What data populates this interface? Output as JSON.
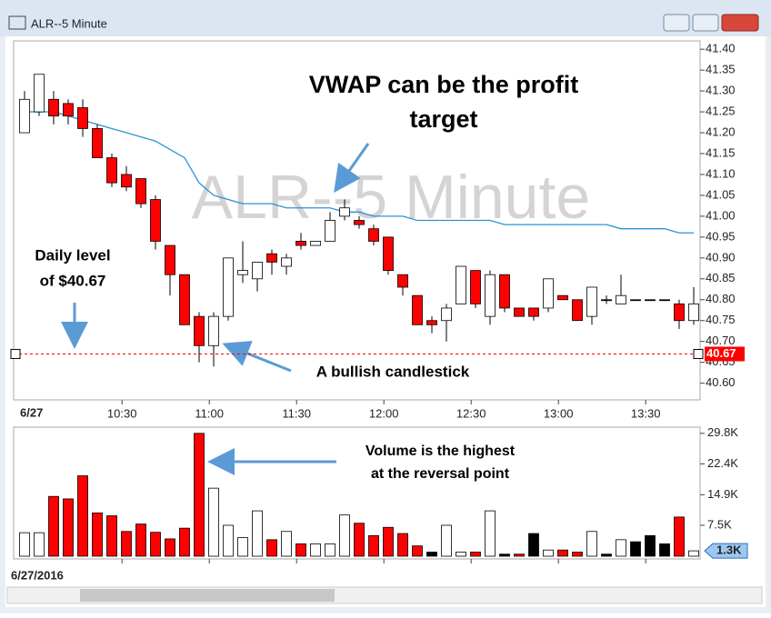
{
  "window_title": "ALR--5 Minute",
  "date_tab": "6/27",
  "footer_date": "6/27/2016",
  "chart_data": [
    {
      "type": "candlestick",
      "watermark": "ALR--5 Minute",
      "open": [
        41.2,
        41.25,
        41.28,
        41.27,
        41.26,
        41.21,
        41.14,
        41.1,
        41.09,
        41.04,
        40.93,
        40.86,
        40.76,
        40.69,
        40.76,
        40.86,
        40.85,
        40.91,
        40.88,
        40.94,
        40.93,
        40.94,
        41.0,
        40.99,
        40.97,
        40.95,
        40.86,
        40.81,
        40.75,
        40.75,
        40.79,
        40.87,
        40.76,
        40.86,
        40.78,
        40.78,
        40.78,
        40.81,
        40.8,
        40.76,
        40.8,
        40.79,
        40.8,
        40.8,
        40.8,
        40.79,
        40.75
      ],
      "high": [
        41.3,
        41.34,
        41.3,
        41.28,
        41.28,
        41.22,
        41.15,
        41.12,
        41.09,
        41.05,
        40.93,
        40.86,
        40.77,
        40.77,
        40.9,
        40.94,
        40.89,
        40.92,
        40.91,
        40.96,
        40.94,
        41.01,
        41.04,
        41.0,
        40.98,
        40.95,
        40.86,
        40.81,
        40.76,
        40.79,
        40.88,
        40.87,
        40.87,
        40.86,
        40.78,
        40.78,
        40.85,
        40.81,
        40.8,
        40.83,
        40.81,
        40.86,
        40.8,
        40.8,
        40.8,
        40.8,
        40.83
      ],
      "low": [
        41.2,
        41.24,
        41.22,
        41.22,
        41.19,
        41.14,
        41.07,
        41.06,
        41.02,
        40.92,
        40.81,
        40.74,
        40.65,
        40.64,
        40.75,
        40.84,
        40.82,
        40.86,
        40.86,
        40.92,
        40.93,
        40.94,
        40.99,
        40.97,
        40.93,
        40.86,
        40.81,
        40.74,
        40.72,
        40.7,
        40.79,
        40.78,
        40.74,
        40.77,
        40.76,
        40.75,
        40.77,
        40.8,
        40.75,
        40.74,
        40.79,
        40.79,
        40.8,
        40.8,
        40.8,
        40.73,
        40.74
      ],
      "close": [
        41.28,
        41.34,
        41.24,
        41.24,
        41.21,
        41.14,
        41.08,
        41.07,
        41.03,
        40.94,
        40.86,
        40.74,
        40.69,
        40.76,
        40.9,
        40.87,
        40.89,
        40.89,
        40.9,
        40.93,
        40.94,
        40.99,
        41.02,
        40.98,
        40.94,
        40.87,
        40.83,
        40.74,
        40.74,
        40.78,
        40.88,
        40.79,
        40.86,
        40.78,
        40.76,
        40.76,
        40.85,
        40.8,
        40.75,
        40.83,
        40.8,
        40.81,
        40.8,
        40.8,
        40.8,
        40.75,
        40.79
      ],
      "up_color": "#ffffff",
      "down_color": "#ff0000",
      "flat_color": "#000000",
      "vwap": {
        "color": "#2a93d5",
        "values": [
          41.25,
          41.25,
          41.25,
          41.24,
          41.23,
          41.22,
          41.21,
          41.2,
          41.19,
          41.18,
          41.16,
          41.14,
          41.08,
          41.05,
          41.04,
          41.03,
          41.03,
          41.03,
          41.02,
          41.02,
          41.02,
          41.02,
          41.01,
          41.01,
          41.0,
          41.0,
          41.0,
          40.99,
          40.99,
          40.99,
          40.99,
          40.99,
          40.99,
          40.98,
          40.98,
          40.98,
          40.98,
          40.98,
          40.98,
          40.98,
          40.98,
          40.97,
          40.97,
          40.97,
          40.97,
          40.96,
          40.96
        ]
      },
      "level": {
        "value": 40.67,
        "color": "#ff0000"
      },
      "ylim": [
        40.56,
        41.42
      ],
      "yticks": [
        {
          "value": 41.4,
          "label": "41.40"
        },
        {
          "value": 41.35,
          "label": "41.35"
        },
        {
          "value": 41.3,
          "label": "41.30"
        },
        {
          "value": 41.25,
          "label": "41.25"
        },
        {
          "value": 41.2,
          "label": "41.20"
        },
        {
          "value": 41.15,
          "label": "41.15"
        },
        {
          "value": 41.1,
          "label": "41.10"
        },
        {
          "value": 41.05,
          "label": "41.05"
        },
        {
          "value": 41.0,
          "label": "41.00"
        },
        {
          "value": 40.95,
          "label": "40.95"
        },
        {
          "value": 40.9,
          "label": "40.90"
        },
        {
          "value": 40.85,
          "label": "40.85"
        },
        {
          "value": 40.8,
          "label": "40.80"
        },
        {
          "value": 40.75,
          "label": "40.75"
        },
        {
          "value": 40.7,
          "label": "40.70"
        },
        {
          "value": 40.65,
          "label": "40.65"
        },
        {
          "value": 40.6,
          "label": "40.60"
        }
      ],
      "xticks": [
        {
          "value": 6.7,
          "label": "10:30"
        },
        {
          "value": 12.7,
          "label": "11:00"
        },
        {
          "value": 18.7,
          "label": "11:30"
        },
        {
          "value": 24.7,
          "label": "12:00"
        },
        {
          "value": 30.7,
          "label": "12:30"
        },
        {
          "value": 36.7,
          "label": "13:00"
        },
        {
          "value": 42.7,
          "label": "13:30"
        }
      ],
      "annotations": {
        "vwap": [
          "VWAP can be the profit",
          "target"
        ],
        "level": [
          "Daily level",
          "of $40.67"
        ],
        "candle": "A bullish candlestick"
      }
    },
    {
      "type": "bar",
      "values": [
        5700,
        5700,
        14500,
        13900,
        19500,
        10500,
        9800,
        6000,
        7800,
        5800,
        4200,
        6800,
        29800,
        16500,
        7500,
        4500,
        11000,
        4000,
        6000,
        3000,
        3000,
        3000,
        10000,
        8000,
        5000,
        7000,
        5500,
        2500,
        1000,
        7500,
        1000,
        1000,
        11000,
        500,
        500,
        5500,
        1500,
        1500,
        1000,
        6000,
        500,
        4000,
        3500,
        5000,
        3000,
        9500,
        1300
      ],
      "value_labels_last": "1.3K",
      "colors": [
        "#ffffff",
        "#ffffff",
        "#ff0000",
        "#ff0000",
        "#ff0000",
        "#ff0000",
        "#ff0000",
        "#ff0000",
        "#ff0000",
        "#ff0000",
        "#ff0000",
        "#ff0000",
        "#ff0000",
        "#ffffff",
        "#ffffff",
        "#ffffff",
        "#ffffff",
        "#ff0000",
        "#ffffff",
        "#ff0000",
        "#ffffff",
        "#ffffff",
        "#ffffff",
        "#ff0000",
        "#ff0000",
        "#ff0000",
        "#ff0000",
        "#ff0000",
        "#000000",
        "#ffffff",
        "#ffffff",
        "#ff0000",
        "#ffffff",
        "#000000",
        "#ff0000",
        "#000000",
        "#ffffff",
        "#ff0000",
        "#ff0000",
        "#ffffff",
        "#000000",
        "#ffffff",
        "#000000",
        "#000000",
        "#000000",
        "#ff0000",
        "#ffffff"
      ],
      "ylim": [
        0,
        31300
      ],
      "yticks": [
        {
          "value": 29800,
          "label": "29.8K"
        },
        {
          "value": 22400,
          "label": "22.4K"
        },
        {
          "value": 14900,
          "label": "14.9K"
        },
        {
          "value": 7500,
          "label": "7.5K"
        }
      ],
      "annotation": [
        "Volume is the highest",
        "at the reversal point"
      ]
    }
  ]
}
